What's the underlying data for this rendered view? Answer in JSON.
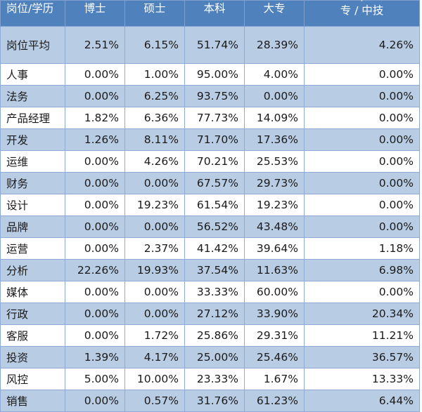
{
  "colors": {
    "header": "#4f81bd",
    "alt_row": "#b8cce4",
    "border": "#8eaad6"
  },
  "headers": [
    "岗位/学历",
    "博士",
    "硕士",
    "本科",
    "大专"
  ],
  "last_header": {
    "line1": "中",
    "line2": "专 / 中技"
  },
  "rows": [
    {
      "label": "岗位平均",
      "values": [
        "2.51%",
        "6.15%",
        "51.74%",
        "28.39%",
        "4.26%"
      ]
    },
    {
      "label": "人事",
      "values": [
        "0.00%",
        "1.00%",
        "95.00%",
        "4.00%",
        "0.00%"
      ]
    },
    {
      "label": "法务",
      "values": [
        "0.00%",
        "6.25%",
        "93.75%",
        "0.00%",
        "0.00%"
      ]
    },
    {
      "label": "产品经理",
      "values": [
        "1.82%",
        "6.36%",
        "77.73%",
        "14.09%",
        "0.00%"
      ]
    },
    {
      "label": "开发",
      "values": [
        "1.26%",
        "8.11%",
        "71.70%",
        "17.36%",
        "0.00%"
      ]
    },
    {
      "label": "运维",
      "values": [
        "0.00%",
        "4.26%",
        "70.21%",
        "25.53%",
        "0.00%"
      ]
    },
    {
      "label": "财务",
      "values": [
        "0.00%",
        "0.00%",
        "67.57%",
        "29.73%",
        "0.00%"
      ]
    },
    {
      "label": "设计",
      "values": [
        "0.00%",
        "19.23%",
        "61.54%",
        "19.23%",
        "0.00%"
      ]
    },
    {
      "label": "品牌",
      "values": [
        "0.00%",
        "0.00%",
        "56.52%",
        "43.48%",
        "0.00%"
      ]
    },
    {
      "label": "运营",
      "values": [
        "0.00%",
        "2.37%",
        "41.42%",
        "39.64%",
        "1.18%"
      ]
    },
    {
      "label": "分析",
      "values": [
        "22.26%",
        "19.93%",
        "37.54%",
        "11.63%",
        "6.98%"
      ]
    },
    {
      "label": "媒体",
      "values": [
        "0.00%",
        "0.00%",
        "33.33%",
        "60.00%",
        "0.00%"
      ]
    },
    {
      "label": "行政",
      "values": [
        "0.00%",
        "0.00%",
        "27.12%",
        "33.90%",
        "20.34%"
      ]
    },
    {
      "label": "客服",
      "values": [
        "0.00%",
        "1.72%",
        "25.86%",
        "29.31%",
        "11.21%"
      ]
    },
    {
      "label": "投资",
      "values": [
        "1.39%",
        "4.17%",
        "25.00%",
        "25.46%",
        "36.57%"
      ]
    },
    {
      "label": "风控",
      "values": [
        "5.00%",
        "10.00%",
        "23.33%",
        "1.67%",
        "13.33%"
      ]
    },
    {
      "label": "销售",
      "values": [
        "0.00%",
        "0.57%",
        "31.76%",
        "61.23%",
        "6.44%"
      ]
    }
  ]
}
